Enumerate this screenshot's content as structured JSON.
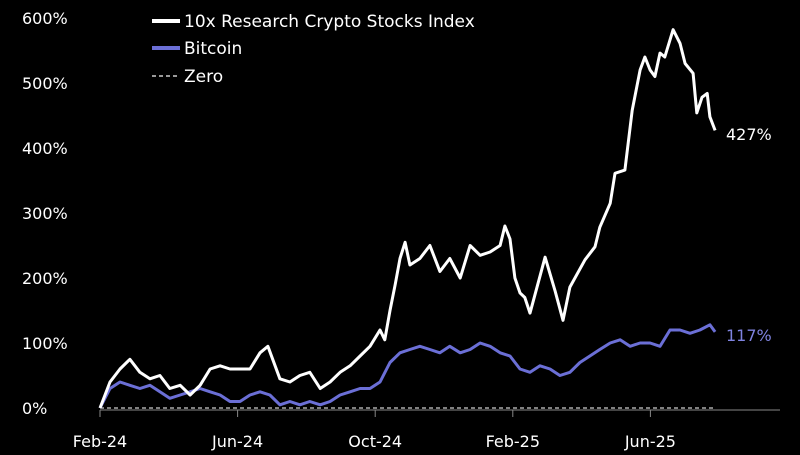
{
  "chart_data": {
    "type": "line",
    "title": "",
    "xlabel": "",
    "ylabel": "",
    "x_units": "months since Feb-24",
    "xlim": [
      0,
      18
    ],
    "ylim": [
      0,
      600
    ],
    "y_ticks": [
      0,
      100,
      200,
      300,
      400,
      500,
      600
    ],
    "y_tick_labels": [
      "0%",
      "100%",
      "200%",
      "300%",
      "400%",
      "500%",
      "600%"
    ],
    "x_ticks": [
      0,
      4,
      8,
      12,
      16
    ],
    "x_tick_labels": [
      "Feb-24",
      "Jun-24",
      "Oct-24",
      "Feb-25",
      "Jun-25"
    ],
    "grid": false,
    "legend_position": "top-left",
    "legend": [
      "10x Research Crypto Stocks Index",
      "Bitcoin",
      "Zero"
    ],
    "series": [
      {
        "name": "10x Research Crypto Stocks Index",
        "color": "#ffffff",
        "end_label": "427%",
        "x": [
          0,
          0.29,
          0.58,
          0.87,
          1.16,
          1.45,
          1.74,
          2.03,
          2.33,
          2.62,
          2.91,
          3.2,
          3.49,
          3.78,
          4.07,
          4.36,
          4.65,
          4.88,
          5.23,
          5.52,
          5.81,
          6.1,
          6.4,
          6.69,
          6.98,
          7.27,
          7.56,
          7.85,
          8.14,
          8.28,
          8.43,
          8.58,
          8.72,
          8.87,
          9.01,
          9.3,
          9.59,
          9.88,
          10.17,
          10.47,
          10.76,
          11.05,
          11.34,
          11.63,
          11.77,
          11.92,
          12.06,
          12.21,
          12.35,
          12.5,
          12.94,
          13.23,
          13.46,
          13.66,
          14.1,
          14.39,
          14.53,
          14.83,
          14.97,
          15.26,
          15.47,
          15.7,
          15.84,
          15.99,
          16.13,
          16.28,
          16.42,
          16.66,
          16.86,
          17.01,
          17.24,
          17.35,
          17.5,
          17.65,
          17.73,
          17.88
        ],
        "values": [
          0,
          40,
          60,
          75,
          55,
          45,
          50,
          30,
          35,
          20,
          35,
          60,
          65,
          60,
          60,
          60,
          85,
          95,
          45,
          40,
          50,
          55,
          30,
          40,
          55,
          65,
          80,
          95,
          120,
          105,
          150,
          190,
          230,
          255,
          220,
          230,
          250,
          210,
          230,
          200,
          250,
          235,
          240,
          250,
          280,
          260,
          200,
          177,
          170,
          146,
          232,
          180,
          135,
          186,
          228,
          248,
          278,
          315,
          361,
          366,
          458,
          520,
          540,
          520,
          510,
          546,
          540,
          582,
          561,
          530,
          515,
          454,
          478,
          484,
          448,
          427
        ]
      },
      {
        "name": "Bitcoin",
        "color": "#6b6fd6",
        "end_label": "117%",
        "x": [
          0,
          0.29,
          0.58,
          0.87,
          1.16,
          1.45,
          1.74,
          2.03,
          2.33,
          2.62,
          2.91,
          3.2,
          3.49,
          3.78,
          4.07,
          4.36,
          4.65,
          4.94,
          5.23,
          5.52,
          5.81,
          6.1,
          6.4,
          6.69,
          6.98,
          7.27,
          7.56,
          7.85,
          8.14,
          8.43,
          8.72,
          9.01,
          9.3,
          9.59,
          9.88,
          10.17,
          10.47,
          10.76,
          11.05,
          11.34,
          11.63,
          11.92,
          12.21,
          12.5,
          12.79,
          13.08,
          13.37,
          13.66,
          13.95,
          14.24,
          14.53,
          14.83,
          15.12,
          15.41,
          15.7,
          15.99,
          16.28,
          16.57,
          16.86,
          17.15,
          17.44,
          17.73,
          17.88
        ],
        "values": [
          0,
          30,
          40,
          35,
          30,
          35,
          25,
          15,
          20,
          25,
          30,
          25,
          20,
          10,
          10,
          20,
          25,
          20,
          5,
          10,
          5,
          10,
          5,
          10,
          20,
          25,
          30,
          30,
          40,
          70,
          85,
          90,
          95,
          90,
          85,
          95,
          85,
          90,
          100,
          95,
          85,
          80,
          60,
          55,
          65,
          60,
          50,
          55,
          70,
          80,
          90,
          100,
          105,
          95,
          100,
          100,
          95,
          120,
          120,
          115,
          120,
          128,
          117
        ]
      },
      {
        "name": "Zero",
        "color": "#cccccc",
        "style": "dashed",
        "x": [
          0,
          17.88
        ],
        "values": [
          0,
          0
        ]
      }
    ]
  }
}
